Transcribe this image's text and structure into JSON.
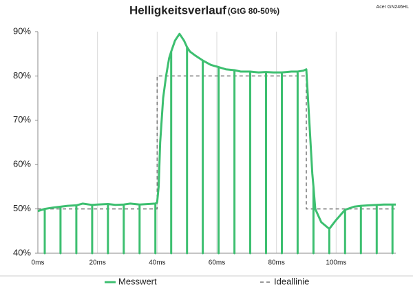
{
  "chart_data": {
    "type": "line",
    "title": "Helligkeitsverlauf",
    "subtitle": "(GtG 80-50%)",
    "annotation": "Acer GN246HL",
    "xlim": [
      0,
      120
    ],
    "xticks": [
      {
        "value": 0,
        "label": "0ms"
      },
      {
        "value": 20,
        "label": "20ms"
      },
      {
        "value": 40,
        "label": "40ms"
      },
      {
        "value": 60,
        "label": "60ms"
      },
      {
        "value": 80,
        "label": "80ms"
      },
      {
        "value": 100,
        "label": "100ms"
      }
    ],
    "ylim": [
      40,
      90
    ],
    "yticks": [
      {
        "value": 40,
        "label": "40%"
      },
      {
        "value": 50,
        "label": "50%"
      },
      {
        "value": 60,
        "label": "60%"
      },
      {
        "value": 70,
        "label": "70%"
      },
      {
        "value": 80,
        "label": "80%"
      },
      {
        "value": 90,
        "label": "90%"
      }
    ],
    "grid": "x",
    "legend": "bottom",
    "series": [
      {
        "name": "Messwert",
        "color": "#3dbf70",
        "style": "solid",
        "x": [
          0,
          2.3,
          2.3,
          2.3,
          5,
          7.6,
          7.6,
          7.6,
          10,
          12.9,
          12.9,
          12.9,
          15,
          18.2,
          18.2,
          18.2,
          20,
          23.5,
          23.5,
          23.5,
          26,
          28.8,
          28.8,
          28.8,
          31,
          34.1,
          34.1,
          34.1,
          37,
          39.4,
          39.4,
          39.4,
          40,
          40.5,
          41,
          42,
          43,
          44,
          44.7,
          44.7,
          44.7,
          46,
          47.5,
          49,
          50,
          50,
          50,
          51,
          53,
          55.3,
          55.3,
          55.3,
          58,
          60.6,
          60.6,
          60.6,
          63,
          65.9,
          65.9,
          65.9,
          68,
          71.2,
          71.2,
          71.2,
          74,
          76.5,
          76.5,
          76.5,
          79,
          81.8,
          81.8,
          81.8,
          85,
          87.1,
          87.1,
          87.1,
          89,
          90,
          91,
          92,
          92.4,
          92.4,
          92.4,
          93,
          95,
          97.7,
          97.7,
          97.7,
          100,
          103,
          103,
          103,
          106,
          108.3,
          108.3,
          108.3,
          111,
          113.6,
          113.6,
          113.6,
          116,
          118.9,
          118.9,
          118.9,
          120
        ],
        "values": [
          49.5,
          50,
          40,
          50,
          50.3,
          50.5,
          40,
          50.5,
          50.7,
          50.8,
          40,
          50.8,
          51.2,
          50.9,
          40,
          50.9,
          51,
          51.1,
          40,
          51.1,
          50.9,
          51,
          40,
          51,
          51.2,
          51,
          40,
          51,
          51.1,
          51.2,
          40,
          51.2,
          51.5,
          55,
          65,
          75,
          80,
          84,
          85.5,
          40,
          85.5,
          88,
          89.5,
          88,
          86.5,
          40,
          86.5,
          85.5,
          84.5,
          83.5,
          40,
          83.5,
          82.5,
          82,
          40,
          82,
          81.5,
          81.3,
          40,
          81.3,
          81,
          81,
          40,
          81,
          80.8,
          80.9,
          40,
          80.9,
          80.8,
          80.8,
          40,
          80.8,
          81,
          81,
          40,
          81,
          81.2,
          81.5,
          70,
          58,
          55,
          40,
          55,
          50,
          47,
          45.5,
          40,
          45.5,
          47.5,
          49.8,
          40,
          49.8,
          50.5,
          50.7,
          40,
          50.7,
          50.8,
          50.9,
          40,
          50.9,
          51,
          51,
          40,
          51,
          51
        ]
      },
      {
        "name": "Ideallinie",
        "color": "#777777",
        "style": "dashed",
        "x": [
          0,
          40,
          40,
          90,
          90,
          120
        ],
        "values": [
          50,
          50,
          80,
          80,
          50,
          50
        ]
      }
    ]
  }
}
